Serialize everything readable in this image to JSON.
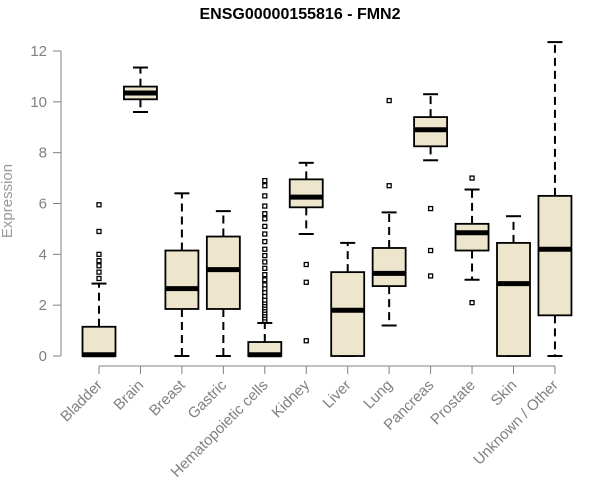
{
  "chart_data": {
    "type": "boxplot",
    "title": "ENSG00000155816 - FMN2",
    "xlabel": "",
    "ylabel": "Expression",
    "ylim": [
      0,
      12.5
    ],
    "yticks": [
      0,
      2,
      4,
      6,
      8,
      10,
      12
    ],
    "grid": false,
    "legend": "none",
    "colors": {
      "box_fill": "#ede6cc",
      "stroke": "#000000",
      "axis": "#808080"
    },
    "categories": [
      "Bladder",
      "Brain",
      "Breast",
      "Gastric",
      "Hematopoietic cells",
      "Kidney",
      "Liver",
      "Lung",
      "Pancreas",
      "Prostate",
      "Skin",
      "Unknown / Other"
    ],
    "boxes": [
      {
        "name": "Bladder",
        "whisker_low": 0,
        "q1": 0,
        "median": 0.05,
        "q3": 1.15,
        "whisker_high": 2.85,
        "outliers": [
          3.05,
          3.3,
          3.55,
          3.75,
          4.0,
          4.9,
          5.95
        ]
      },
      {
        "name": "Brain",
        "whisker_low": 9.6,
        "q1": 10.1,
        "median": 10.35,
        "q3": 10.6,
        "whisker_high": 11.35,
        "outliers": []
      },
      {
        "name": "Breast",
        "whisker_low": 0,
        "q1": 1.85,
        "median": 2.65,
        "q3": 4.15,
        "whisker_high": 6.4,
        "outliers": []
      },
      {
        "name": "Gastric",
        "whisker_low": 0,
        "q1": 1.85,
        "median": 3.4,
        "q3": 4.7,
        "whisker_high": 5.7,
        "outliers": []
      },
      {
        "name": "Hematopoietic cells",
        "whisker_low": 0,
        "q1": 0,
        "median": 0.05,
        "q3": 0.55,
        "whisker_high": 1.3,
        "outliers": [
          1.4,
          1.5,
          1.6,
          1.7,
          1.8,
          1.9,
          2.0,
          2.1,
          2.2,
          2.35,
          2.5,
          2.65,
          2.8,
          3.0,
          3.2,
          3.45,
          3.7,
          3.95,
          4.2,
          4.5,
          4.8,
          5.1,
          5.4,
          5.6,
          5.9,
          6.3,
          6.7,
          6.9
        ]
      },
      {
        "name": "Kidney",
        "whisker_low": 4.8,
        "q1": 5.85,
        "median": 6.25,
        "q3": 6.95,
        "whisker_high": 7.6,
        "outliers": [
          0.6,
          2.9,
          3.6
        ]
      },
      {
        "name": "Liver",
        "whisker_low": 0,
        "q1": 0,
        "median": 1.8,
        "q3": 3.3,
        "whisker_high": 4.45,
        "outliers": []
      },
      {
        "name": "Lung",
        "whisker_low": 1.2,
        "q1": 2.75,
        "median": 3.25,
        "q3": 4.25,
        "whisker_high": 5.65,
        "outliers": [
          6.7,
          10.05
        ]
      },
      {
        "name": "Pancreas",
        "whisker_low": 7.7,
        "q1": 8.25,
        "median": 8.9,
        "q3": 9.4,
        "whisker_high": 10.3,
        "outliers": [
          3.15,
          4.15,
          5.8
        ]
      },
      {
        "name": "Prostate",
        "whisker_low": 3.0,
        "q1": 4.15,
        "median": 4.85,
        "q3": 5.2,
        "whisker_high": 6.55,
        "outliers": [
          2.1,
          7.0
        ]
      },
      {
        "name": "Skin",
        "whisker_low": 0,
        "q1": 0,
        "median": 2.85,
        "q3": 4.45,
        "whisker_high": 5.5,
        "outliers": []
      },
      {
        "name": "Unknown / Other",
        "whisker_low": 0,
        "q1": 1.6,
        "median": 4.2,
        "q3": 6.3,
        "whisker_high": 12.35,
        "outliers": []
      }
    ]
  }
}
